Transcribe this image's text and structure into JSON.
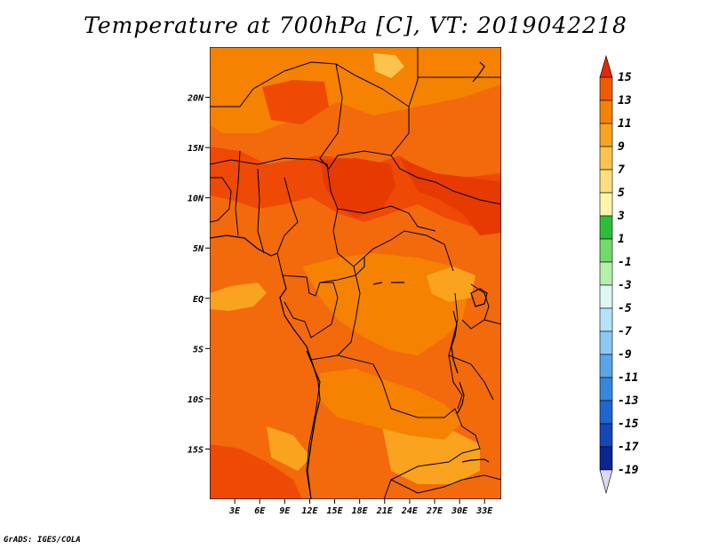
{
  "title": "Temperature at 700hPa [C], VT: 2019042218",
  "credit": "GrADS: IGES/COLA",
  "map": {
    "lat_labels": [
      "20N",
      "15N",
      "10N",
      "5N",
      "EQ",
      "5S",
      "10S",
      "15S"
    ],
    "lat_values": [
      20,
      15,
      10,
      5,
      0,
      -5,
      -10,
      -15
    ],
    "lon_labels": [
      "3E",
      "6E",
      "9E",
      "12E",
      "15E",
      "18E",
      "21E",
      "24E",
      "27E",
      "30E",
      "33E"
    ],
    "lon_values": [
      3,
      6,
      9,
      12,
      15,
      18,
      21,
      24,
      27,
      30,
      33
    ],
    "lon_range": [
      0,
      35
    ],
    "lat_range": [
      -20,
      25
    ]
  },
  "colorbar": {
    "labels": [
      "15",
      "13",
      "11",
      "9",
      "7",
      "5",
      "3",
      "1",
      "-1",
      "-3",
      "-5",
      "-7",
      "-9",
      "-11",
      "-13",
      "-15",
      "-17",
      "-19"
    ],
    "colors": [
      "#e63500",
      "#f05a00",
      "#f58200",
      "#f9a31f",
      "#fcc34e",
      "#fddf80",
      "#fdf5ae",
      "#2ebd39",
      "#74d96b",
      "#b4efad",
      "#def7f4",
      "#b5e2fb",
      "#8dc9f5",
      "#5aa5e8",
      "#3587de",
      "#1f66d2",
      "#1447b8",
      "#0c2592",
      "#06075a"
    ],
    "top_arrow_color": "#e62800",
    "bottom_arrow_color": "#dad9f4"
  }
}
